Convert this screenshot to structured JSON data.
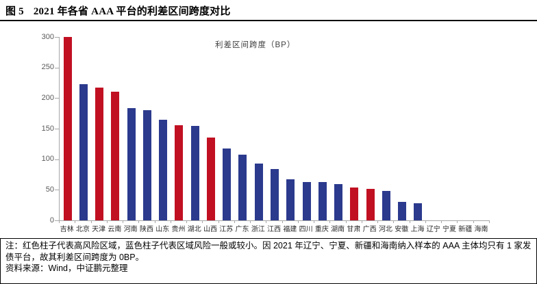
{
  "figure": {
    "label": "图 5",
    "title": "2021 年各省 AAA 平台的利差区间跨度对比"
  },
  "chart_data": {
    "type": "bar",
    "legend": "利差区间跨度（BP）",
    "ylabel": "利差区间跨度（BP）",
    "ylim": [
      0,
      300
    ],
    "ytick_step": 50,
    "ytick_labels": [
      "0",
      "50",
      "100",
      "150",
      "200",
      "250",
      "300"
    ],
    "grid": false,
    "legend_position": "top-center-inside",
    "categories": [
      "吉林",
      "北京",
      "天津",
      "云南",
      "河南",
      "陕西",
      "山东",
      "贵州",
      "湖北",
      "山西",
      "江苏",
      "广东",
      "浙江",
      "江西",
      "福建",
      "四川",
      "重庆",
      "湖南",
      "甘肃",
      "广西",
      "河北",
      "安徽",
      "上海",
      "辽宁",
      "宁夏",
      "新疆",
      "海南"
    ],
    "values": [
      300,
      223,
      217,
      210,
      184,
      180,
      165,
      156,
      155,
      136,
      117,
      108,
      93,
      84,
      67,
      63,
      63,
      59,
      54,
      52,
      48,
      30,
      28,
      0,
      0,
      0,
      0
    ],
    "bar_color_keys": [
      "red",
      "blue",
      "red",
      "red",
      "blue",
      "blue",
      "blue",
      "red",
      "blue",
      "red",
      "blue",
      "blue",
      "blue",
      "blue",
      "blue",
      "blue",
      "blue",
      "blue",
      "red",
      "red",
      "blue",
      "blue",
      "blue",
      "blue",
      "blue",
      "blue",
      "blue"
    ],
    "colors": {
      "red": "#c11022",
      "blue": "#2b3a8d",
      "axis": "#a6a6a6",
      "tick_label": "#595959",
      "category_label": "#262626"
    }
  },
  "note": {
    "text": "注：红色柱子代表高风险区域，蓝色柱子代表区域风险一般或较小。因 2021 年辽宁、宁夏、新疆和海南纳入样本的 AAA 主体均只有 1 家发债平台，故其利差区间跨度为 0BP。",
    "source": "资料来源：Wind，中证鹏元整理"
  }
}
